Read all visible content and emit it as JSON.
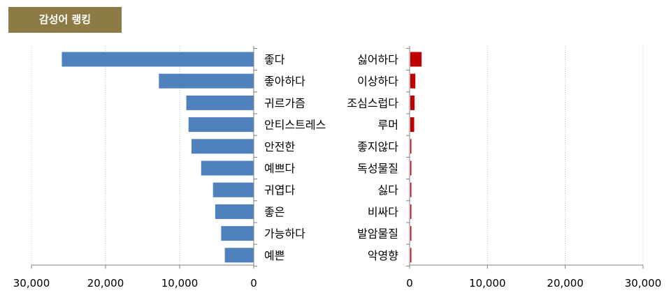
{
  "header": {
    "title": "감성어 랭킹"
  },
  "colors": {
    "title_bg": "#8c7b45",
    "positive_bar": "#4f81bd",
    "negative_bar": "#c00000"
  },
  "chart_data": [
    {
      "type": "bar",
      "orientation": "horizontal",
      "direction": "right-to-left",
      "categories": [
        "좋다",
        "좋아하다",
        "귀르가즘",
        "안티스트레스",
        "안전한",
        "예쁘다",
        "귀엽다",
        "좋은",
        "가능하다",
        "예쁜"
      ],
      "values": [
        25900,
        12800,
        9100,
        8800,
        8400,
        7100,
        5500,
        5200,
        4400,
        3900
      ],
      "xlim": [
        0,
        30000
      ],
      "xticks": [
        "30,000",
        "20,000",
        "10,000",
        "0"
      ],
      "grid": true
    },
    {
      "type": "bar",
      "orientation": "horizontal",
      "direction": "left-to-right",
      "categories": [
        "싫어하다",
        "이상하다",
        "조심스럽다",
        "루머",
        "좋지않다",
        "독성물질",
        "싫다",
        "비싸다",
        "발암물질",
        "악영향"
      ],
      "values": [
        1450,
        650,
        550,
        500,
        120,
        100,
        90,
        80,
        70,
        60
      ],
      "xlim": [
        0,
        30000
      ],
      "xticks": [
        "0",
        "10,000",
        "20,000",
        "30,000"
      ],
      "grid": true
    }
  ]
}
